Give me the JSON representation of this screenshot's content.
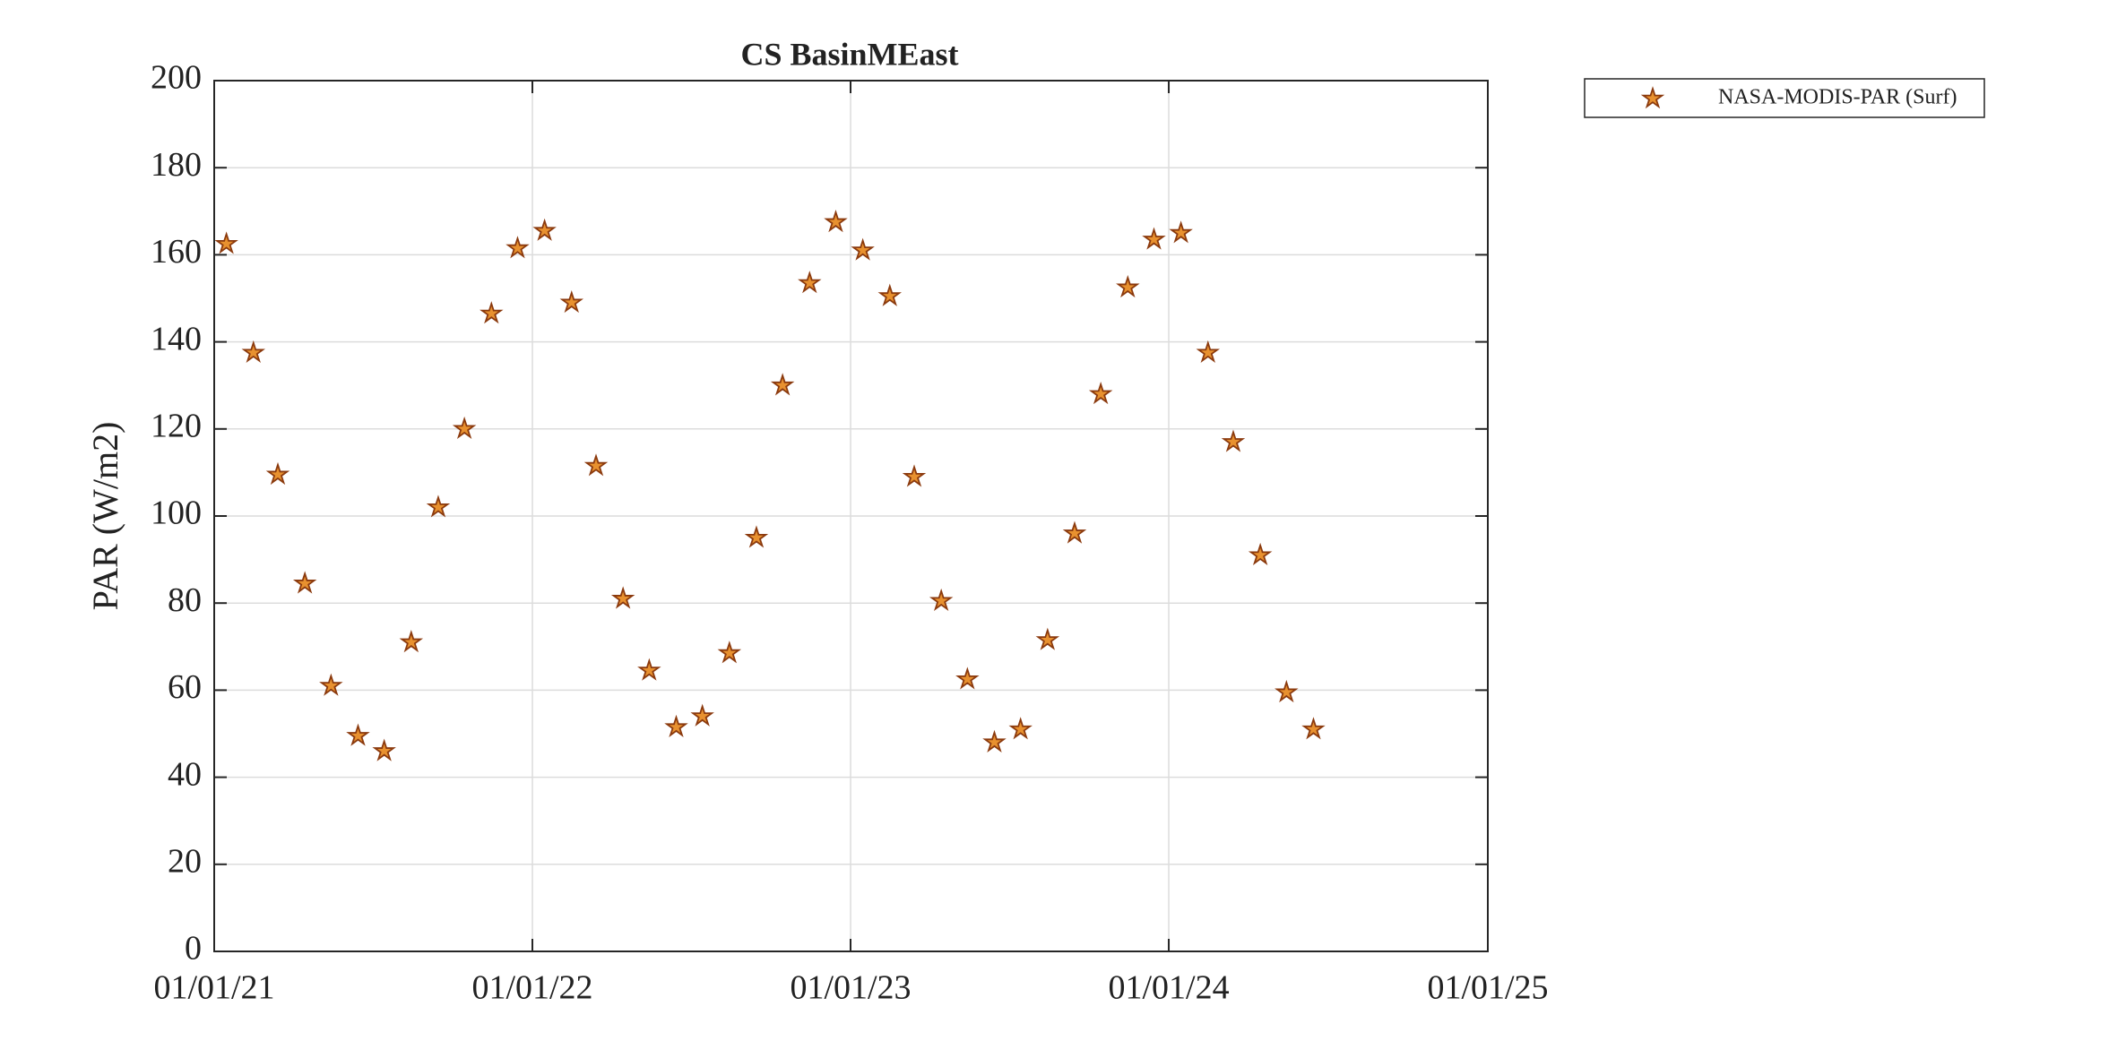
{
  "chart_data": {
    "type": "scatter",
    "title": "CS BasinMEast",
    "ylabel": "PAR (W/m2)",
    "x": [
      "2021-01-15",
      "2021-02-15",
      "2021-03-15",
      "2021-04-15",
      "2021-05-15",
      "2021-06-15",
      "2021-07-15",
      "2021-08-15",
      "2021-09-15",
      "2021-10-15",
      "2021-11-15",
      "2021-12-15",
      "2022-01-15",
      "2022-02-15",
      "2022-03-15",
      "2022-04-15",
      "2022-05-15",
      "2022-06-15",
      "2022-07-15",
      "2022-08-15",
      "2022-09-15",
      "2022-10-15",
      "2022-11-15",
      "2022-12-15",
      "2023-01-15",
      "2023-02-15",
      "2023-03-15",
      "2023-04-15",
      "2023-05-15",
      "2023-06-15",
      "2023-07-15",
      "2023-08-15",
      "2023-09-15",
      "2023-10-15",
      "2023-11-15",
      "2023-12-15",
      "2024-01-15",
      "2024-02-15",
      "2024-03-15",
      "2024-04-15",
      "2024-05-15",
      "2024-06-15"
    ],
    "series": [
      {
        "name": "NASA-MODIS-PAR (Surf)",
        "color": "#e8912f",
        "edgecolor": "#8b3a0e",
        "values": [
          162.5,
          137.5,
          109.5,
          84.5,
          61,
          49.5,
          46,
          71,
          102,
          120,
          146.5,
          161.5,
          165.5,
          149,
          111.5,
          81,
          64.5,
          51.5,
          54,
          68.5,
          95,
          130,
          153.5,
          167.5,
          161,
          150.5,
          109,
          80.5,
          62.5,
          48,
          51,
          71.5,
          96,
          128,
          152.5,
          163.5,
          165,
          137.5,
          117,
          91,
          59.5,
          51
        ]
      }
    ],
    "xlim": [
      "2021-01-01",
      "2025-01-01"
    ],
    "xticks": [
      {
        "value": "2021-01-01",
        "label": "01/01/21"
      },
      {
        "value": "2022-01-01",
        "label": "01/01/22"
      },
      {
        "value": "2023-01-01",
        "label": "01/01/23"
      },
      {
        "value": "2024-01-01",
        "label": "01/01/24"
      },
      {
        "value": "2025-01-01",
        "label": "01/01/25"
      }
    ],
    "ylim": [
      0,
      200
    ],
    "yticks": [
      0,
      20,
      40,
      60,
      80,
      100,
      120,
      140,
      160,
      180,
      200
    ],
    "grid": true,
    "legend": "outside-northeast"
  }
}
